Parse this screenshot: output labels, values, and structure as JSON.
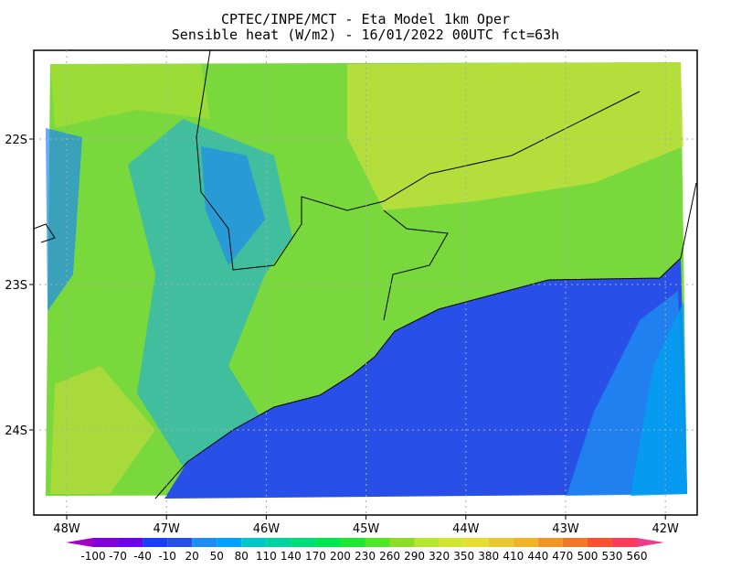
{
  "title": {
    "line1": "CPTEC/INPE/MCT -  Eta Model 1km Oper",
    "line2": "Sensible heat (W/m2) - 16/01/2022 00UTC fct=63h"
  },
  "map": {
    "lon_ticks": [
      {
        "value": -48,
        "label": "48W"
      },
      {
        "value": -47,
        "label": "47W"
      },
      {
        "value": -46,
        "label": "46W"
      },
      {
        "value": -45,
        "label": "45W"
      },
      {
        "value": -44,
        "label": "44W"
      },
      {
        "value": -43,
        "label": "43W"
      },
      {
        "value": -42,
        "label": "42W"
      }
    ],
    "lat_ticks": [
      {
        "value": -22,
        "label": "22S"
      },
      {
        "value": -23,
        "label": "23S"
      },
      {
        "value": -24,
        "label": "24S"
      }
    ]
  },
  "colorbar": {
    "levels": [
      -100,
      -70,
      -40,
      -10,
      20,
      50,
      80,
      110,
      140,
      170,
      200,
      230,
      260,
      290,
      320,
      350,
      380,
      410,
      440,
      470,
      500,
      530,
      560
    ],
    "colors": [
      "#a000c8",
      "#8200dc",
      "#6e00f0",
      "#1e3cff",
      "#2850e8",
      "#1e8cf0",
      "#00a0ff",
      "#00c8c8",
      "#00d2a0",
      "#00dc78",
      "#00e650",
      "#1ee632",
      "#50e628",
      "#8cdc28",
      "#b4e632",
      "#d2e632",
      "#e6dc32",
      "#e6c832",
      "#f0b428",
      "#f09628",
      "#f07828",
      "#fa5032",
      "#fa3c5a",
      "#f03c8c"
    ]
  }
}
